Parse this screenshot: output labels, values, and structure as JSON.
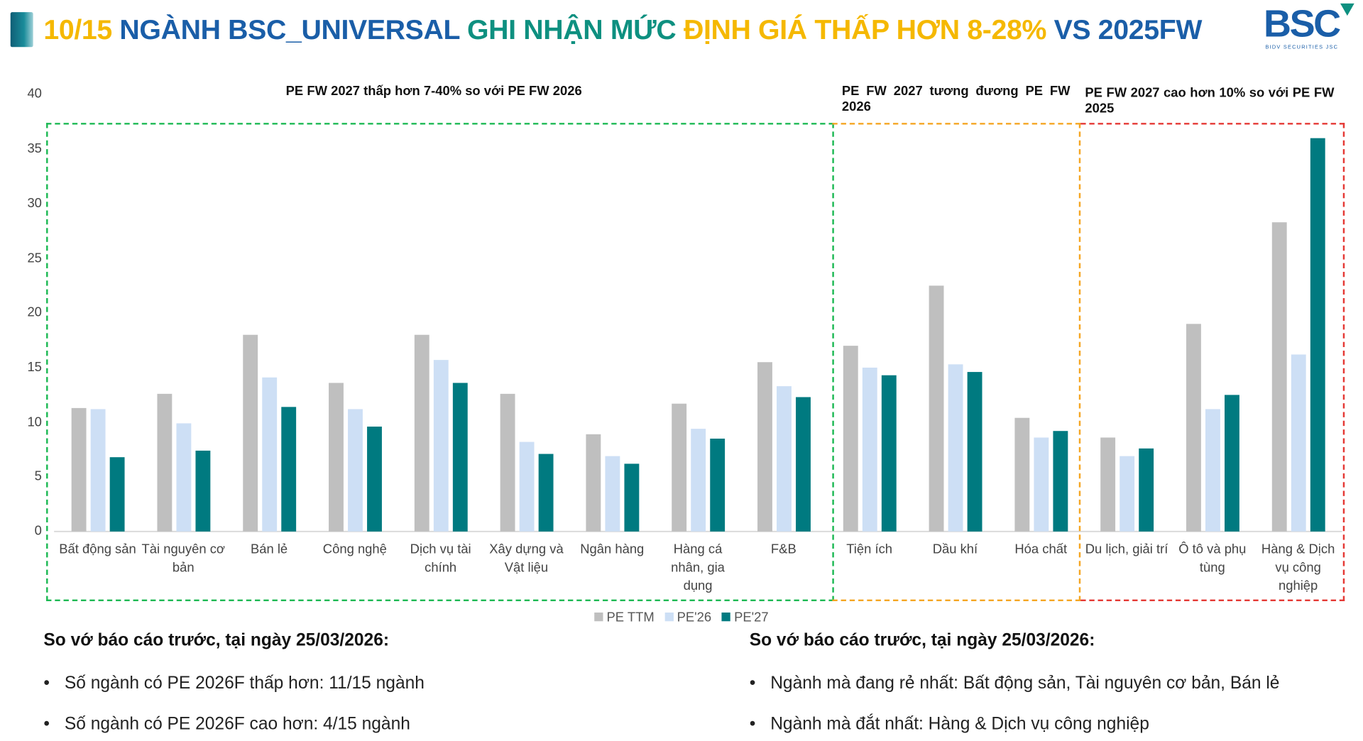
{
  "header": {
    "title_parts": [
      {
        "text": "10/15",
        "color": "#f5b800"
      },
      {
        "text": " NGÀNH BSC_UNIVERSAL",
        "color": "#1a5ea8"
      },
      {
        "text": " GHI NHẬN MỨC",
        "color": "#0e9080"
      },
      {
        "text": " ĐỊNH GIÁ THẤP HƠN 8-28%",
        "color": "#f5b800"
      },
      {
        "text": " VS 2025FW",
        "color": "#1a5ea8"
      }
    ],
    "logo_text": "BSC",
    "logo_subtext": "BIDV SECURITIES JSC"
  },
  "chart_data": {
    "type": "bar",
    "ylim": [
      0,
      40
    ],
    "yticks": [
      "0",
      "5",
      "10",
      "15",
      "20",
      "25",
      "30",
      "35",
      "40"
    ],
    "grid": false,
    "legend_position": "bottom",
    "categories": [
      [
        "Bất động sản"
      ],
      [
        "Tài nguyên cơ",
        "bản"
      ],
      [
        "Bán lẻ"
      ],
      [
        "Công nghệ"
      ],
      [
        "Dịch vụ tài",
        "chính"
      ],
      [
        "Xây dựng và",
        "Vật liệu"
      ],
      [
        "Ngân hàng"
      ],
      [
        "Hàng cá",
        "nhân, gia",
        "dụng"
      ],
      [
        "F&B"
      ],
      [
        "Tiện ích"
      ],
      [
        "Dầu khí"
      ],
      [
        "Hóa chất"
      ],
      [
        "Du lịch, giải trí"
      ],
      [
        "Ô tô và phụ",
        "tùng"
      ],
      [
        "Hàng & Dịch",
        "vụ công",
        "nghiệp"
      ]
    ],
    "series": [
      {
        "name": "PE TTM",
        "color": "#bfbfbf",
        "values": [
          11.3,
          12.6,
          18.0,
          13.6,
          18.0,
          12.6,
          8.9,
          11.7,
          15.5,
          17.0,
          22.5,
          10.4,
          8.6,
          19.0,
          28.3
        ]
      },
      {
        "name": "PE'26",
        "color": "#cddff5",
        "values": [
          11.2,
          9.9,
          14.1,
          11.2,
          15.7,
          8.2,
          6.9,
          9.4,
          13.3,
          15.0,
          15.3,
          8.6,
          6.9,
          11.2,
          16.2
        ]
      },
      {
        "name": "PE'27",
        "color": "#007a80",
        "values": [
          6.8,
          7.4,
          11.4,
          9.6,
          13.6,
          7.1,
          6.2,
          8.5,
          12.3,
          14.3,
          14.6,
          9.2,
          7.6,
          12.5,
          36.0
        ]
      }
    ],
    "groups": [
      {
        "label": "PE FW 2027 thấp hơn 7-40% so với PE FW 2026",
        "from": 0,
        "to": 8,
        "color": "#1db954"
      },
      {
        "label": "PE FW 2027 tương đương PE FW 2026",
        "from": 9,
        "to": 11,
        "color": "#f5a623"
      },
      {
        "label": "PE FW 2027 cao hơn 10% so với PE FW 2025",
        "from": 12,
        "to": 14,
        "color": "#e53935"
      }
    ]
  },
  "notes": {
    "left": {
      "heading": "So vớ báo cáo trước, tại ngày 25/03/2026:",
      "bullets": [
        "Số ngành có PE 2026F thấp hơn: 11/15 ngành",
        "Số ngành có PE 2026F cao hơn: 4/15 ngành"
      ]
    },
    "right": {
      "heading": "So vớ báo cáo trước, tại ngày 25/03/2026:",
      "bullets": [
        "Ngành mà đang rẻ nhất: Bất động sản, Tài nguyên cơ bản, Bán lẻ",
        "Ngành mà đắt nhất: Hàng & Dịch vụ công nghiệp"
      ]
    },
    "bullet_glyph": "•"
  }
}
